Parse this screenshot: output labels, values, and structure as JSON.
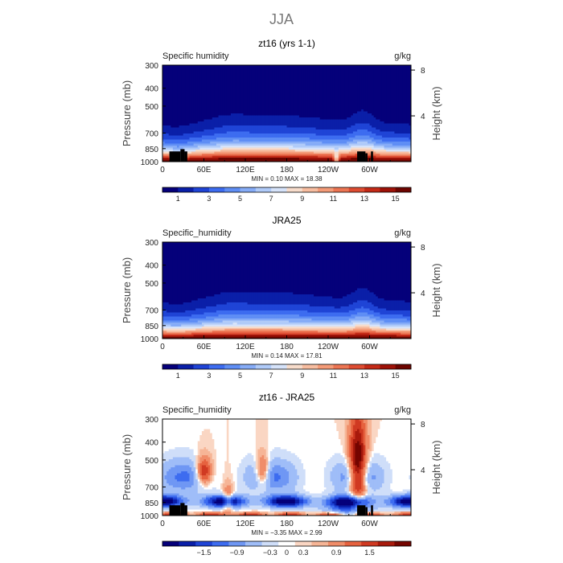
{
  "page_title": "JJA",
  "panel_common": {
    "xlabels": [
      "0",
      "60E",
      "120E",
      "180",
      "120W",
      "60W"
    ],
    "xticks": [
      0,
      60,
      120,
      180,
      240,
      300
    ],
    "pressure_label": "Pressure (mb)",
    "pressure_ticks": [
      300,
      400,
      500,
      700,
      850,
      1000
    ],
    "height_label": "Height (km)",
    "height_ticks": [
      4,
      8
    ],
    "units": "g/kg"
  },
  "panels": [
    {
      "title": "zt16 (yrs 1-1)",
      "variable_label": "Specific humidity",
      "units": "g/kg",
      "stats_text": "MIN =    0.10   MAX =   18.38",
      "colorbar_labels": [
        "1",
        "3",
        "5",
        "7",
        "9",
        "11",
        "13",
        "15"
      ],
      "palette": "moist",
      "has_topography": true
    },
    {
      "title": "JRA25",
      "variable_label": "Specific_humidity",
      "units": "g/kg",
      "stats_text": "MIN =    0.14   MAX =   17.81",
      "colorbar_labels": [
        "1",
        "3",
        "5",
        "7",
        "9",
        "11",
        "13",
        "15"
      ],
      "palette": "moist",
      "has_topography": false
    },
    {
      "title": "zt16 - JRA25",
      "variable_label": "Specific_humidity",
      "units": "g/kg",
      "stats_text": "MIN =   −3.35   MAX =    2.99",
      "colorbar_labels": [
        "−1.5",
        "−0.9",
        "−0.3",
        "0",
        "0.3",
        "0.9",
        "1.5"
      ],
      "palette": "diff",
      "has_topography": true
    }
  ],
  "chart_data": [
    {
      "type": "heatmap",
      "title": "zt16 (yrs 1-1)",
      "variable": "Specific humidity",
      "units": "g/kg",
      "x_axis": "longitude (degrees east)",
      "xlim": [
        0,
        360
      ],
      "ylabel": "Pressure (mb)",
      "ylim": [
        1000,
        300
      ],
      "y2label": "Height (km)",
      "levels": [
        1,
        2,
        3,
        4,
        5,
        6,
        7,
        8,
        9,
        10,
        11,
        12,
        13,
        14,
        15,
        16
      ],
      "min": 0.1,
      "max": 18.38
    },
    {
      "type": "heatmap",
      "title": "JRA25",
      "variable": "Specific_humidity",
      "units": "g/kg",
      "x_axis": "longitude (degrees east)",
      "xlim": [
        0,
        360
      ],
      "ylabel": "Pressure (mb)",
      "ylim": [
        1000,
        300
      ],
      "y2label": "Height (km)",
      "levels": [
        1,
        2,
        3,
        4,
        5,
        6,
        7,
        8,
        9,
        10,
        11,
        12,
        13,
        14,
        15,
        16
      ],
      "min": 0.14,
      "max": 17.81
    },
    {
      "type": "heatmap",
      "title": "zt16 - JRA25",
      "variable": "Specific_humidity",
      "units": "g/kg",
      "x_axis": "longitude (degrees east)",
      "xlim": [
        0,
        360
      ],
      "ylabel": "Pressure (mb)",
      "ylim": [
        1000,
        300
      ],
      "y2label": "Height (km)",
      "levels": [
        -1.8,
        -1.5,
        -1.2,
        -0.9,
        -0.6,
        -0.3,
        -0.1,
        0,
        0.1,
        0.3,
        0.6,
        0.9,
        1.2,
        1.5,
        1.8
      ],
      "min": -3.35,
      "max": 2.99
    }
  ],
  "colors": {
    "moist": [
      "#05007a",
      "#0a1fa8",
      "#1f44d6",
      "#3d6cf0",
      "#5f8ef5",
      "#86acf7",
      "#b0cbf9",
      "#d6e3fa",
      "#f7dccb",
      "#f7bda0",
      "#f49b78",
      "#ec7553",
      "#de4c32",
      "#c42a17",
      "#9e1208",
      "#6d0500"
    ],
    "diff": [
      "#05007a",
      "#0a1fa8",
      "#1f44d6",
      "#3d6cf0",
      "#6f97f4",
      "#9fbdf8",
      "#cfdef9",
      "#ffffff",
      "#fad6c3",
      "#f6b596",
      "#f08d69",
      "#e6623f",
      "#d03a22",
      "#a81a0c",
      "#750500"
    ],
    "terrain": "#000000"
  }
}
